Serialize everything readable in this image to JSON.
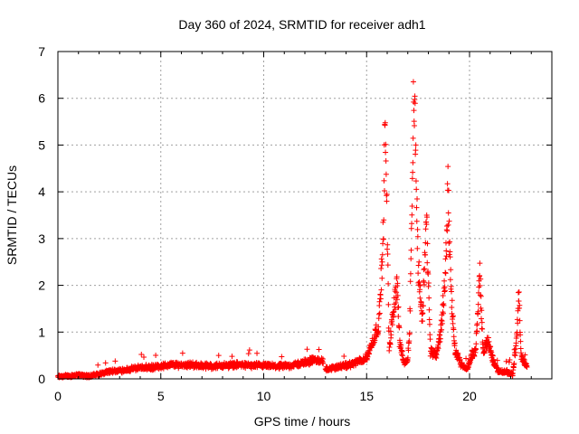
{
  "chart_data": {
    "type": "scatter",
    "title": "Day 360 of 2024, SRMTID for receiver adh1",
    "xlabel": "GPS time / hours",
    "ylabel": "SRMTID / TECUs",
    "xlim": [
      0,
      24
    ],
    "ylim": [
      0,
      7
    ],
    "xticks": [
      0,
      5,
      10,
      15,
      20
    ],
    "yticks": [
      0,
      1,
      2,
      3,
      4,
      5,
      6,
      7
    ],
    "grid": true,
    "marker": "+",
    "colors": {
      "series": "#ff0000",
      "axis": "#000000",
      "grid": "#a0a0a0"
    },
    "series": [
      {
        "name": "SRMTID",
        "segments": [
          {
            "x_start": 0.0,
            "x_end": 12.9,
            "anchors": [
              [
                0,
                0.05
              ],
              [
                0.5,
                0.06
              ],
              [
                1,
                0.08
              ],
              [
                1.5,
                0.06
              ],
              [
                2,
                0.1
              ],
              [
                2.5,
                0.15
              ],
              [
                3,
                0.18
              ],
              [
                3.5,
                0.2
              ],
              [
                4,
                0.25
              ],
              [
                4.5,
                0.24
              ],
              [
                5,
                0.27
              ],
              [
                5.5,
                0.3
              ],
              [
                6,
                0.3
              ],
              [
                6.5,
                0.3
              ],
              [
                7,
                0.28
              ],
              [
                7.5,
                0.27
              ],
              [
                8,
                0.28
              ],
              [
                8.5,
                0.3
              ],
              [
                9,
                0.3
              ],
              [
                9.5,
                0.28
              ],
              [
                10,
                0.28
              ],
              [
                10.5,
                0.27
              ],
              [
                11,
                0.27
              ],
              [
                11.5,
                0.3
              ],
              [
                12,
                0.35
              ],
              [
                12.4,
                0.4
              ],
              [
                12.9,
                0.38
              ]
            ]
          },
          {
            "x_start": 13.0,
            "x_end": 22.8,
            "anchors": [
              [
                13,
                0.2
              ],
              [
                13.5,
                0.25
              ],
              [
                14,
                0.28
              ],
              [
                14.5,
                0.35
              ],
              [
                15,
                0.45
              ],
              [
                15.3,
                0.8
              ],
              [
                15.6,
                1.2
              ],
              [
                15.8,
                3.0
              ],
              [
                15.9,
                5.5
              ],
              [
                16.0,
                3.0
              ],
              [
                16.1,
                0.6
              ],
              [
                16.3,
                1.5
              ],
              [
                16.5,
                2.0
              ],
              [
                16.6,
                0.8
              ],
              [
                16.8,
                0.35
              ],
              [
                17.0,
                0.4
              ],
              [
                17.1,
                1.2
              ],
              [
                17.3,
                6.5
              ],
              [
                17.5,
                2.5
              ],
              [
                17.7,
                1.2
              ],
              [
                17.9,
                3.5
              ],
              [
                18.1,
                0.6
              ],
              [
                18.4,
                0.5
              ],
              [
                18.6,
                1.0
              ],
              [
                18.8,
                2.0
              ],
              [
                18.95,
                4.0
              ],
              [
                19.1,
                1.8
              ],
              [
                19.3,
                0.6
              ],
              [
                19.6,
                0.3
              ],
              [
                19.9,
                0.2
              ],
              [
                20.1,
                0.5
              ],
              [
                20.3,
                0.6
              ],
              [
                20.5,
                2.3
              ],
              [
                20.65,
                0.6
              ],
              [
                20.9,
                0.8
              ],
              [
                21.1,
                0.45
              ],
              [
                21.4,
                0.15
              ],
              [
                21.8,
                0.15
              ],
              [
                22.1,
                0.1
              ],
              [
                22.3,
                0.9
              ],
              [
                22.4,
                1.9
              ],
              [
                22.5,
                0.5
              ],
              [
                22.8,
                0.25
              ]
            ]
          }
        ]
      }
    ]
  }
}
